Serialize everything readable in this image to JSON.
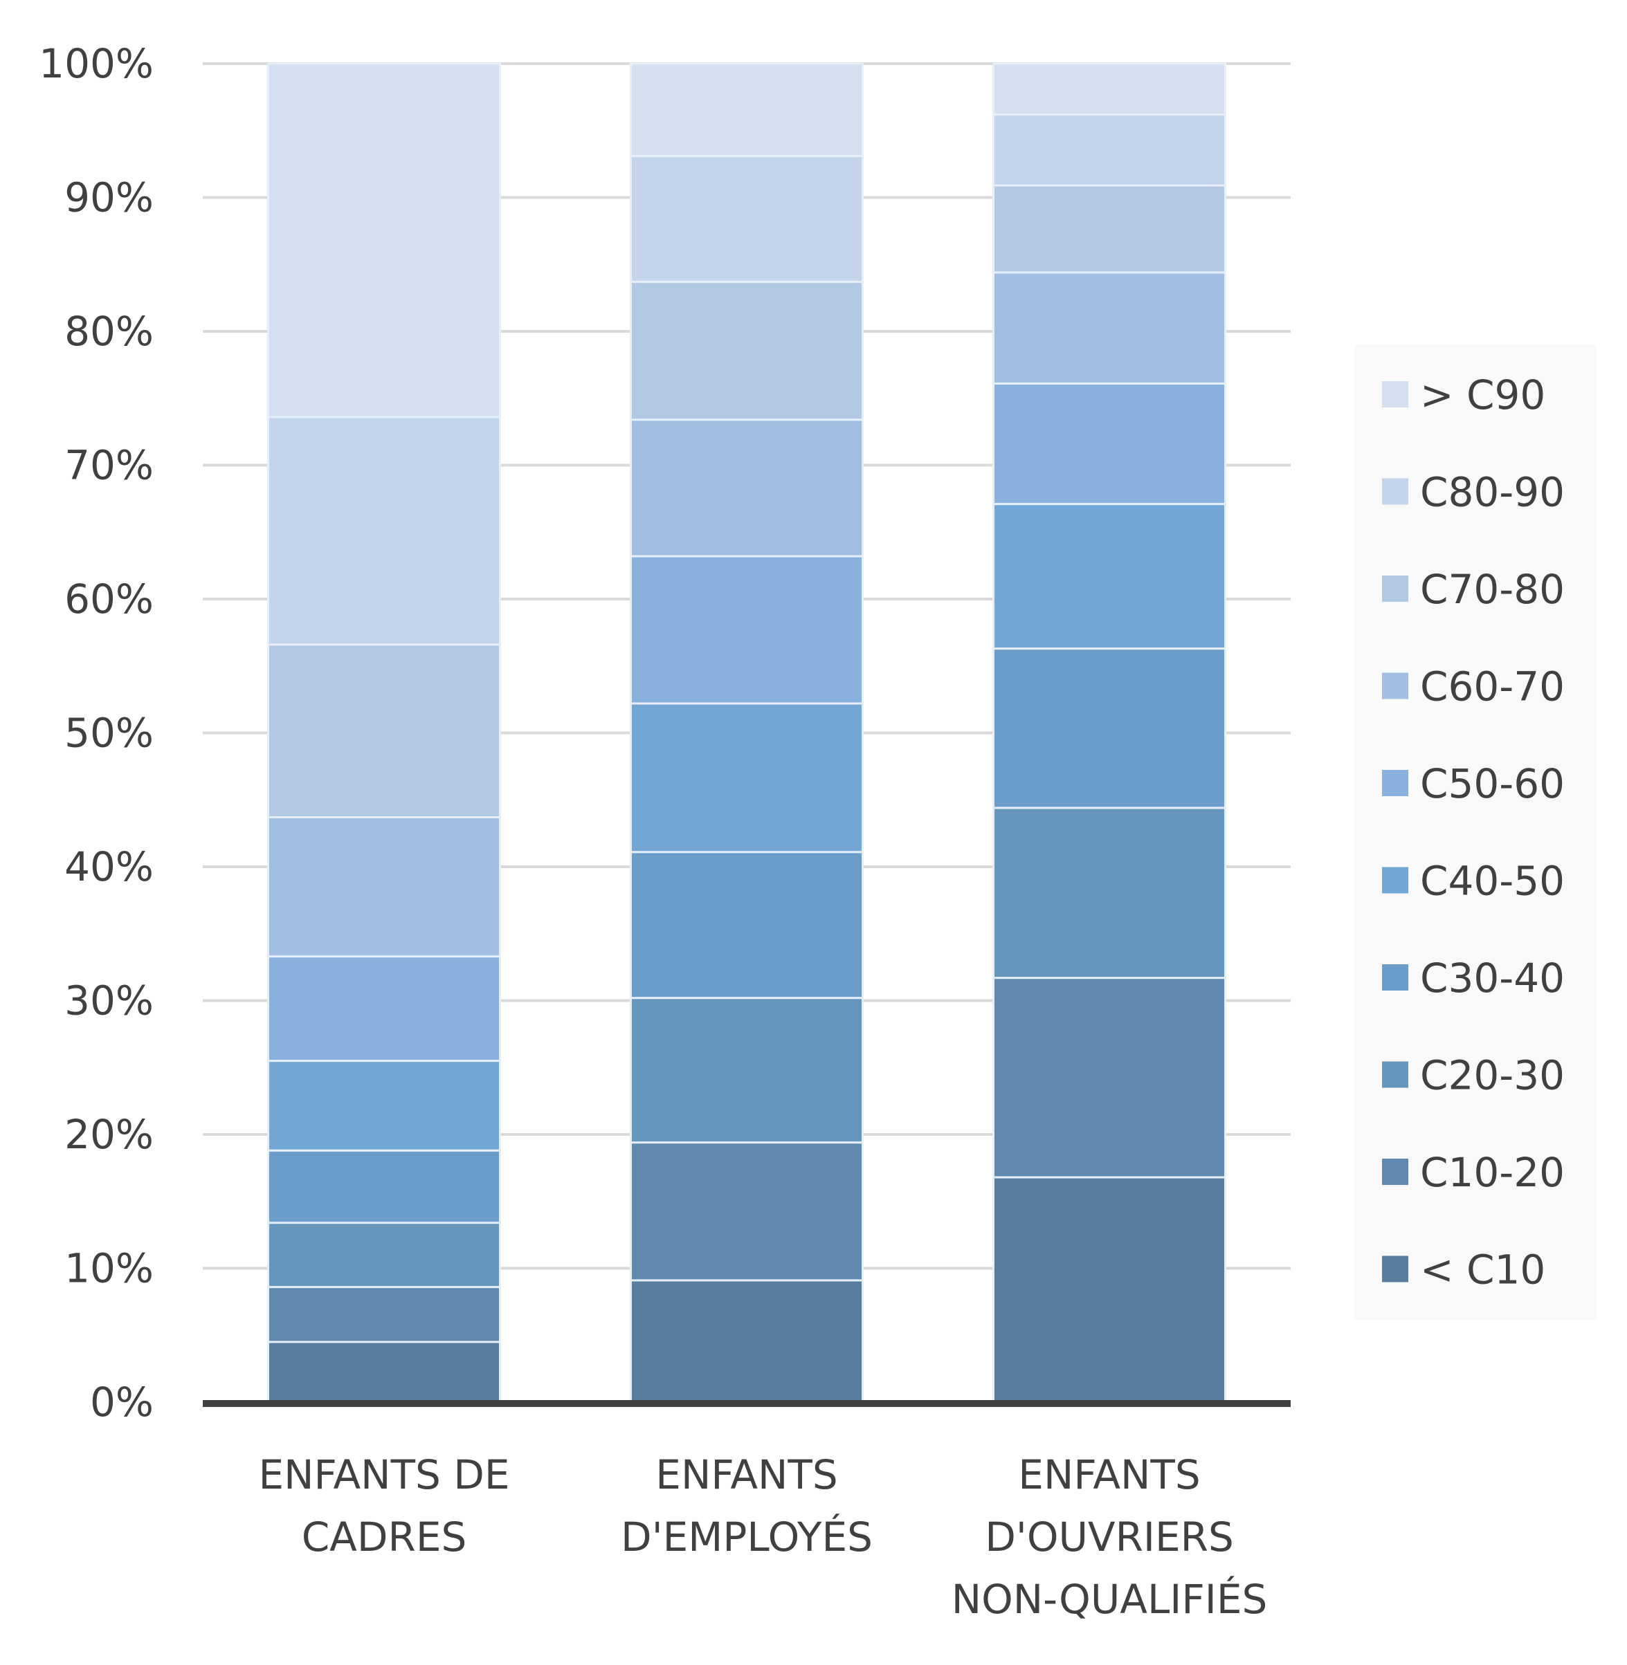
{
  "chart_data": {
    "type": "bar",
    "stacked": true,
    "percent": true,
    "categories": [
      [
        "ENFANTS DE",
        "CADRES"
      ],
      [
        "ENFANTS",
        "D'EMPLOYÉS"
      ],
      [
        "ENFANTS",
        "D'OUVRIERS",
        "NON-QUALIFIÉS"
      ]
    ],
    "series": [
      {
        "name": "< C10",
        "color": "#587d9f",
        "values": [
          4.5,
          9.1,
          16.8
        ]
      },
      {
        "name": "C10-20",
        "color": "#6089b0",
        "values": [
          4.1,
          10.3,
          14.9
        ]
      },
      {
        "name": "C20-30",
        "color": "#6596bd",
        "values": [
          4.8,
          10.8,
          12.7
        ]
      },
      {
        "name": "C30-40",
        "color": "#6b9dca",
        "values": [
          5.4,
          10.9,
          11.9
        ]
      },
      {
        "name": "C40-50",
        "color": "#72a6d4",
        "values": [
          6.7,
          11.1,
          10.8
        ]
      },
      {
        "name": "C50-60",
        "color": "#88b1dd",
        "values": [
          7.8,
          11.0,
          9.0
        ]
      },
      {
        "name": "C60-70",
        "color": "#a1bee2",
        "values": [
          10.4,
          10.2,
          8.3
        ]
      },
      {
        "name": "C70-80",
        "color": "#b3c8e3",
        "values": [
          12.9,
          10.3,
          6.5
        ]
      },
      {
        "name": "C80-90",
        "color": "#c4d4ea",
        "values": [
          17.0,
          9.4,
          5.3
        ]
      },
      {
        "name": "> C90",
        "color": "#d4e0f0",
        "values": [
          26.4,
          6.9,
          3.8
        ]
      }
    ],
    "y_ticks": [
      "0%",
      "10%",
      "20%",
      "30%",
      "40%",
      "50%",
      "60%",
      "70%",
      "80%",
      "90%",
      "100%"
    ],
    "ylim": [
      0,
      100
    ],
    "grid": true,
    "legend_position": "right"
  }
}
